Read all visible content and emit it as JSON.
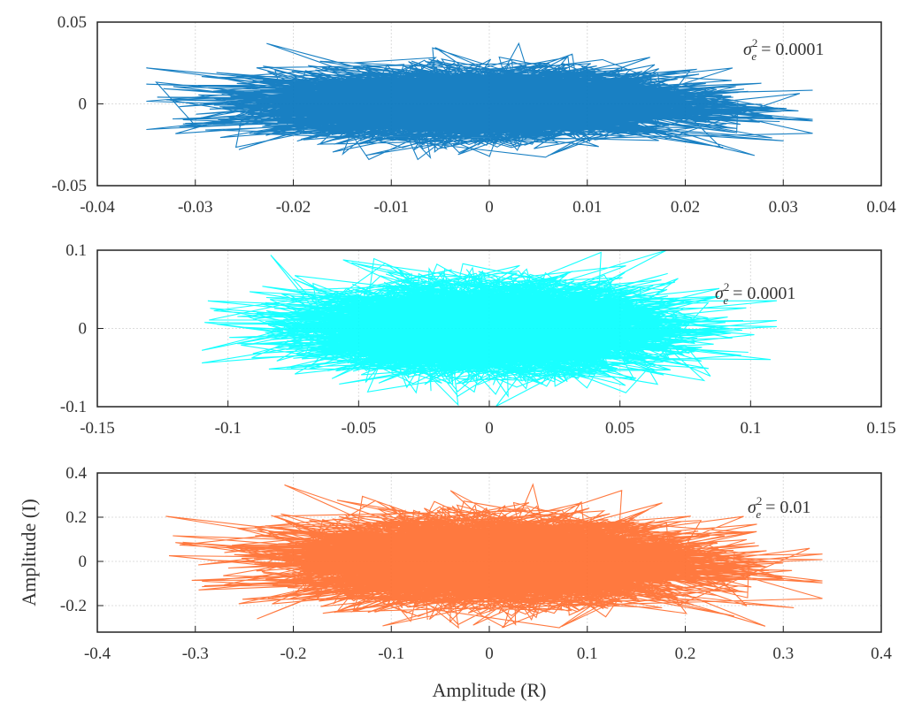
{
  "chart_data": [
    {
      "type": "line",
      "xlim": [
        -0.04,
        0.04
      ],
      "ylim": [
        -0.05,
        0.05
      ],
      "xticks": [
        "-0.04",
        "-0.03",
        "-0.02",
        "-0.01",
        "0",
        "0.01",
        "0.02",
        "0.03",
        "0.04"
      ],
      "yticks": [
        "-0.05",
        "0",
        "0.05"
      ],
      "xtick_values": [
        -0.04,
        -0.03,
        -0.02,
        -0.01,
        0,
        0.01,
        0.02,
        0.03,
        0.04
      ],
      "ytick_values": [
        -0.05,
        0,
        0.05
      ],
      "annotation": {
        "symbol": "σ",
        "sub": "e",
        "sup": "2",
        "text": " = 0.0001"
      },
      "color": "#0072BD",
      "x_extent": [
        -0.035,
        0.033
      ],
      "y_extent": [
        -0.034,
        0.037
      ],
      "grid": true
    },
    {
      "type": "line",
      "xlim": [
        -0.15,
        0.15
      ],
      "ylim": [
        -0.1,
        0.1
      ],
      "xticks": [
        "-0.15",
        "-0.1",
        "-0.05",
        "0",
        "0.05",
        "0.1",
        "0.15"
      ],
      "yticks": [
        "-0.1",
        "0",
        "0.1"
      ],
      "xtick_values": [
        -0.15,
        -0.1,
        -0.05,
        0,
        0.05,
        0.1,
        0.15
      ],
      "ytick_values": [
        -0.1,
        0,
        0.1
      ],
      "annotation": {
        "symbol": "σ",
        "sub": "e",
        "sup": "2",
        "text": " = 0.0001"
      },
      "color": "#00FFFF",
      "x_extent": [
        -0.11,
        0.11
      ],
      "y_extent": [
        -0.1,
        0.1
      ],
      "grid": true
    },
    {
      "type": "line",
      "xlim": [
        -0.4,
        0.4
      ],
      "ylim": [
        -0.32,
        0.4
      ],
      "xticks": [
        "-0.4",
        "-0.3",
        "-0.2",
        "-0.1",
        "0",
        "0.1",
        "0.2",
        "0.3",
        "0.4"
      ],
      "yticks": [
        "-0.2",
        "0",
        "0.2",
        "0.4"
      ],
      "xtick_values": [
        -0.4,
        -0.3,
        -0.2,
        -0.1,
        0,
        0.1,
        0.2,
        0.3,
        0.4
      ],
      "ytick_values": [
        -0.2,
        0,
        0.2,
        0.4
      ],
      "annotation": {
        "symbol": "σ",
        "sub": "e",
        "sup": "2",
        "text": " = 0.01"
      },
      "xlabel": "Amplitude (R)",
      "ylabel": "Amplitude (I)",
      "color": "#FF6A2A",
      "x_extent": [
        -0.33,
        0.34
      ],
      "y_extent": [
        -0.3,
        0.36
      ],
      "grid": true
    }
  ]
}
